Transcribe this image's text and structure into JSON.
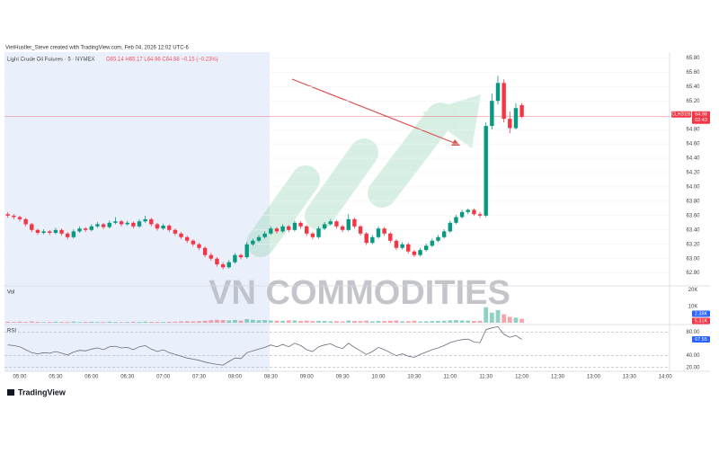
{
  "header": {
    "attribution": "VietHustler_Steve created with TradingView.com, Feb 04, 2026 12:02 UTC-6",
    "symbol": "Light Crude Oil Futures · 5 · NYMEX",
    "ohlc": "O65.14 H65.17 L64.96 C64.98 −0.15 (−0.23%)"
  },
  "watermark": "VN COMMODITIES",
  "logo": "TradingView",
  "chart_data": [
    {
      "type": "candlestick",
      "x": [
        "04:50",
        "04:55",
        "05:00",
        "05:05",
        "05:10",
        "05:15",
        "05:20",
        "05:25",
        "05:30",
        "05:35",
        "05:40",
        "05:45",
        "05:50",
        "05:55",
        "06:00",
        "06:05",
        "06:10",
        "06:15",
        "06:20",
        "06:25",
        "06:30",
        "06:35",
        "06:40",
        "06:45",
        "06:50",
        "06:55",
        "07:00",
        "07:05",
        "07:10",
        "07:15",
        "07:20",
        "07:25",
        "07:30",
        "07:35",
        "07:40",
        "07:45",
        "07:50",
        "07:55",
        "08:00",
        "08:05",
        "08:10",
        "08:15",
        "08:20",
        "08:25",
        "08:30",
        "08:35",
        "08:40",
        "08:45",
        "08:50",
        "08:55",
        "09:00",
        "09:05",
        "09:10",
        "09:15",
        "09:20",
        "09:25",
        "09:30",
        "09:35",
        "09:40",
        "09:45",
        "09:50",
        "09:55",
        "10:00",
        "10:05",
        "10:10",
        "10:15",
        "10:20",
        "10:25",
        "10:30",
        "10:35",
        "10:40",
        "10:45",
        "10:50",
        "10:55",
        "11:00",
        "11:05",
        "11:10",
        "11:15",
        "11:20",
        "11:25",
        "11:30",
        "11:35",
        "11:40",
        "11:45",
        "11:50",
        "11:55",
        "12:00"
      ],
      "open": [
        63.62,
        63.6,
        63.58,
        63.55,
        63.48,
        63.4,
        63.36,
        63.38,
        63.36,
        63.4,
        63.35,
        63.3,
        63.38,
        63.42,
        63.4,
        63.45,
        63.48,
        63.44,
        63.5,
        63.52,
        63.48,
        63.5,
        63.45,
        63.52,
        63.55,
        63.48,
        63.42,
        63.46,
        63.4,
        63.35,
        63.3,
        63.25,
        63.2,
        63.15,
        63.05,
        63.0,
        62.92,
        62.88,
        62.95,
        63.05,
        63.02,
        63.2,
        63.25,
        63.3,
        63.35,
        63.42,
        63.38,
        63.45,
        63.4,
        63.5,
        63.45,
        63.35,
        63.3,
        63.42,
        63.48,
        63.52,
        63.45,
        63.4,
        63.55,
        63.45,
        63.35,
        63.22,
        63.3,
        63.42,
        63.35,
        63.25,
        63.15,
        63.2,
        63.1,
        63.05,
        63.12,
        63.18,
        63.25,
        63.3,
        63.38,
        63.5,
        63.58,
        63.65,
        63.68,
        63.62,
        63.6,
        64.85,
        65.2,
        65.45,
        64.95,
        64.82,
        65.14
      ],
      "high": [
        63.65,
        63.62,
        63.6,
        63.57,
        63.5,
        63.42,
        63.41,
        63.4,
        63.43,
        63.42,
        63.37,
        63.41,
        63.45,
        63.44,
        63.48,
        63.51,
        63.5,
        63.53,
        63.58,
        63.54,
        63.53,
        63.52,
        63.55,
        63.6,
        63.57,
        63.5,
        63.49,
        63.48,
        63.42,
        63.37,
        63.32,
        63.27,
        63.22,
        63.17,
        63.08,
        63.02,
        62.95,
        62.98,
        63.08,
        63.07,
        63.23,
        63.28,
        63.33,
        63.38,
        63.45,
        63.44,
        63.48,
        63.47,
        63.53,
        63.52,
        63.47,
        63.37,
        63.45,
        63.51,
        63.55,
        63.54,
        63.47,
        63.62,
        63.57,
        63.47,
        63.37,
        63.33,
        63.45,
        63.44,
        63.37,
        63.27,
        63.23,
        63.22,
        63.12,
        63.15,
        63.21,
        63.28,
        63.33,
        63.41,
        63.53,
        63.61,
        63.68,
        63.7,
        63.7,
        63.65,
        64.9,
        65.3,
        65.55,
        65.5,
        65.05,
        65.17,
        65.17
      ],
      "low": [
        63.57,
        63.55,
        63.52,
        63.45,
        63.37,
        63.33,
        63.34,
        63.33,
        63.34,
        63.32,
        63.27,
        63.28,
        63.36,
        63.37,
        63.38,
        63.43,
        63.41,
        63.42,
        63.48,
        63.45,
        63.46,
        63.42,
        63.43,
        63.5,
        63.45,
        63.39,
        63.4,
        63.37,
        63.32,
        63.27,
        63.22,
        63.17,
        63.12,
        63.02,
        62.97,
        62.89,
        62.85,
        62.86,
        62.93,
        62.99,
        63.0,
        63.18,
        63.23,
        63.28,
        63.33,
        63.35,
        63.36,
        63.37,
        63.38,
        63.42,
        63.32,
        63.27,
        63.28,
        63.4,
        63.46,
        63.42,
        63.37,
        63.38,
        63.42,
        63.32,
        63.19,
        63.2,
        63.28,
        63.32,
        63.22,
        63.12,
        63.13,
        63.07,
        63.02,
        63.03,
        63.1,
        63.16,
        63.23,
        63.28,
        63.36,
        63.48,
        63.56,
        63.62,
        63.6,
        63.57,
        63.58,
        64.8,
        65.15,
        64.9,
        64.75,
        64.8,
        64.96
      ],
      "close": [
        63.6,
        63.58,
        63.55,
        63.48,
        63.4,
        63.36,
        63.38,
        63.36,
        63.4,
        63.35,
        63.3,
        63.38,
        63.42,
        63.4,
        63.45,
        63.48,
        63.44,
        63.5,
        63.52,
        63.48,
        63.5,
        63.45,
        63.52,
        63.55,
        63.48,
        63.42,
        63.46,
        63.4,
        63.35,
        63.3,
        63.25,
        63.2,
        63.15,
        63.05,
        63.0,
        62.92,
        62.88,
        62.95,
        63.05,
        63.02,
        63.2,
        63.25,
        63.3,
        63.35,
        63.42,
        63.38,
        63.45,
        63.4,
        63.5,
        63.45,
        63.35,
        63.3,
        63.42,
        63.48,
        63.52,
        63.45,
        63.4,
        63.55,
        63.45,
        63.35,
        63.22,
        63.3,
        63.42,
        63.35,
        63.25,
        63.15,
        63.2,
        63.1,
        63.05,
        63.12,
        63.18,
        63.25,
        63.3,
        63.38,
        63.5,
        63.58,
        63.65,
        63.68,
        63.62,
        63.6,
        64.85,
        65.2,
        65.45,
        64.95,
        64.82,
        65.1,
        64.98
      ],
      "up_color": "#089981",
      "down_color": "#f23645",
      "ylim": [
        62.62,
        65.88
      ],
      "yticks": [
        {
          "value": 62.8,
          "label": "62.80"
        },
        {
          "value": 63,
          "label": "63.00"
        },
        {
          "value": 63.2,
          "label": "63.20"
        },
        {
          "value": 63.4,
          "label": "63.40"
        },
        {
          "value": 63.6,
          "label": "63.60"
        },
        {
          "value": 63.8,
          "label": "63.80"
        },
        {
          "value": 64,
          "label": "64.00"
        },
        {
          "value": 64.2,
          "label": "64.20"
        },
        {
          "value": 64.4,
          "label": "64.40"
        },
        {
          "value": 64.6,
          "label": "64.60"
        },
        {
          "value": 64.8,
          "label": "64.80"
        },
        {
          "value": 65.2,
          "label": "65.20"
        },
        {
          "value": 65.4,
          "label": "65.40"
        },
        {
          "value": 65.6,
          "label": "65.60"
        },
        {
          "value": 65.8,
          "label": "65.80"
        }
      ],
      "xticks": [
        "05:00",
        "05:30",
        "06:00",
        "06:30",
        "07:00",
        "07:30",
        "08:00",
        "08:30",
        "09:00",
        "09:30",
        "10:00",
        "10:30",
        "11:00",
        "11:30",
        "12:00",
        "12:30",
        "13:00",
        "13:30",
        "14:00"
      ],
      "grid": true,
      "price_tag": {
        "symbol": "CLH2026",
        "price": "64.98",
        "countdown": "02:43"
      }
    },
    {
      "type": "bar",
      "title": "Vol",
      "values": [
        600,
        500,
        700,
        450,
        800,
        550,
        400,
        500,
        650,
        450,
        500,
        700,
        400,
        550,
        600,
        450,
        500,
        650,
        500,
        400,
        450,
        600,
        500,
        700,
        550,
        500,
        450,
        600,
        700,
        800,
        900,
        850,
        1000,
        1200,
        1500,
        1800,
        1600,
        1400,
        1700,
        1300,
        2200,
        1800,
        1500,
        1600,
        1400,
        1300,
        1200,
        1500,
        1400,
        1100,
        1300,
        1000,
        1200,
        1100,
        900,
        1000,
        800,
        1400,
        1100,
        1000,
        1300,
        900,
        1100,
        1000,
        1200,
        1400,
        900,
        1000,
        1200,
        800,
        900,
        1000,
        1100,
        1200,
        1500,
        1600,
        1400,
        1300,
        1100,
        1200,
        9500,
        6200,
        7800,
        5100,
        3600,
        3100,
        2380
      ],
      "ylim": [
        0,
        22000
      ],
      "yticks": [
        {
          "value": 20000,
          "label": "20K"
        },
        {
          "value": 10000,
          "label": "10K"
        }
      ],
      "tags": [
        "2.38K",
        "5.31K"
      ]
    },
    {
      "type": "line",
      "title": "RSI",
      "color": "#6b6b7b",
      "values": [
        58,
        57,
        55,
        50,
        45,
        43,
        45,
        44,
        47,
        44,
        41,
        46,
        49,
        48,
        51,
        53,
        50,
        55,
        56,
        53,
        54,
        50,
        55,
        57,
        51,
        47,
        50,
        45,
        42,
        39,
        36,
        34,
        32,
        29,
        27,
        25,
        24,
        30,
        36,
        35,
        45,
        48,
        51,
        54,
        58,
        55,
        59,
        55,
        61,
        57,
        50,
        47,
        55,
        58,
        60,
        55,
        52,
        61,
        54,
        48,
        42,
        47,
        54,
        50,
        45,
        40,
        43,
        39,
        37,
        42,
        46,
        50,
        53,
        57,
        62,
        65,
        67,
        68,
        63,
        62,
        84,
        87,
        89,
        76,
        71,
        74,
        67.55
      ],
      "ylim": [
        15,
        85
      ],
      "yticks": [
        {
          "value": 80,
          "label": "80.00"
        },
        {
          "value": 40,
          "label": "40.00"
        },
        {
          "value": 20,
          "label": "20.00"
        }
      ],
      "last_label": "67.55"
    }
  ]
}
